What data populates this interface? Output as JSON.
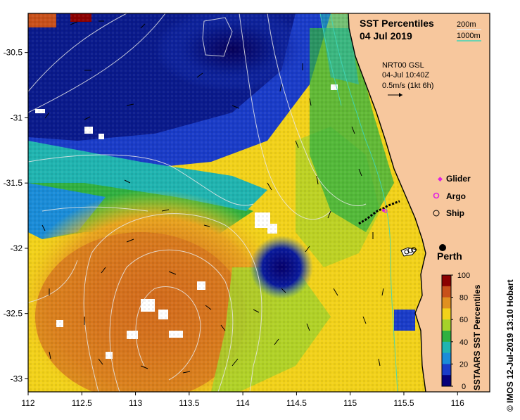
{
  "map": {
    "title_line1": "SST Percentiles",
    "title_line2": "04 Jul 2019",
    "isobaths": [
      {
        "label": "200m",
        "color": "#e8e8e8"
      },
      {
        "label": "1000m",
        "color": "#3fd6b8"
      }
    ],
    "current_source": "NRT00 GSL",
    "current_time": "04-Jul 10:40Z",
    "current_scale": "0.5m/s (1kt 6h)",
    "city_label": "Perth",
    "credit": "© IMOS 12-Jul-2019 13:10 Hobart"
  },
  "legend": {
    "items": [
      {
        "label": "Glider",
        "color": "#e020e0"
      },
      {
        "label": "Argo",
        "color": "#e020e0"
      },
      {
        "label": "Ship",
        "color": "#000000"
      }
    ]
  },
  "colorbar": {
    "title": "SSTAARS SST Percentiles",
    "ticks": [
      "100",
      "80",
      "60",
      "40",
      "20",
      "0"
    ],
    "colors": [
      "#8b0000",
      "#c8501a",
      "#e09020",
      "#f2d21a",
      "#a6d22a",
      "#30b040",
      "#20b4b0",
      "#1a8cd8",
      "#1a3cc8",
      "#06007a"
    ]
  },
  "axes": {
    "x_ticks": [
      "112",
      "112.5",
      "113",
      "113.5",
      "114",
      "114.5",
      "115",
      "115.5",
      "116"
    ],
    "y_ticks": [
      "-30.5",
      "-31",
      "-31.5",
      "-32",
      "-32.5",
      "-33"
    ]
  },
  "colors": {
    "land": "#f7c79d",
    "warm": "#d6741d",
    "cold": "#0a1a8c"
  }
}
